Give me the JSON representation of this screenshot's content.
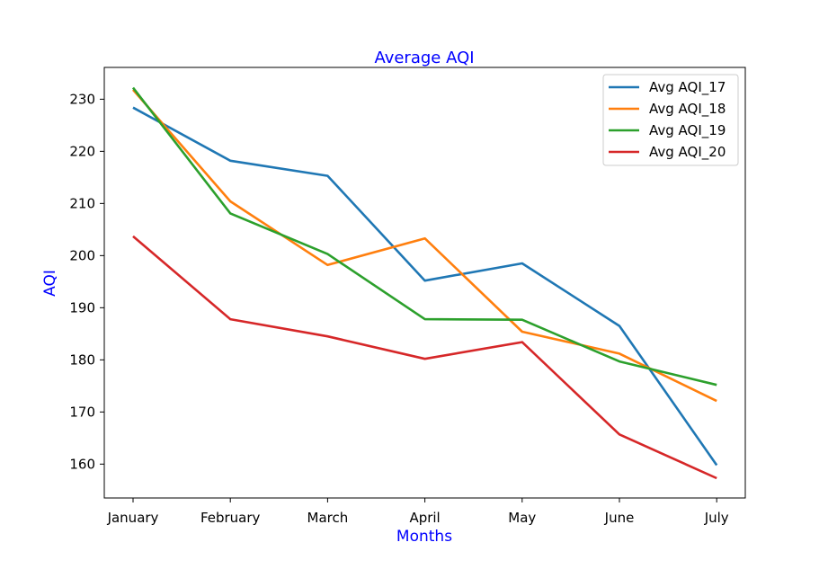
{
  "chart_data": {
    "type": "line",
    "title": "Average AQI",
    "xlabel": "Months",
    "ylabel": "AQI",
    "categories": [
      "January",
      "February",
      "March",
      "April",
      "May",
      "June",
      "July"
    ],
    "ylim": [
      153.5,
      236.1
    ],
    "yticks": [
      160,
      170,
      180,
      190,
      200,
      210,
      220,
      230
    ],
    "grid": false,
    "legend_position": "top-right",
    "series": [
      {
        "name": "Avg AQI_17",
        "color": "#1f77b4",
        "values": [
          228.4,
          218.2,
          215.3,
          195.2,
          198.5,
          186.5,
          159.8
        ]
      },
      {
        "name": "Avg AQI_18",
        "color": "#ff7f0e",
        "values": [
          231.8,
          210.4,
          198.2,
          203.3,
          185.4,
          181.2,
          172.1
        ]
      },
      {
        "name": "Avg AQI_19",
        "color": "#2ca02c",
        "values": [
          232.2,
          208.1,
          200.3,
          187.8,
          187.7,
          179.7,
          175.2
        ]
      },
      {
        "name": "Avg AQI_20",
        "color": "#d62728",
        "values": [
          203.7,
          187.8,
          184.5,
          180.2,
          183.4,
          165.7,
          157.3
        ]
      }
    ],
    "accent_color": "#0000ff"
  }
}
